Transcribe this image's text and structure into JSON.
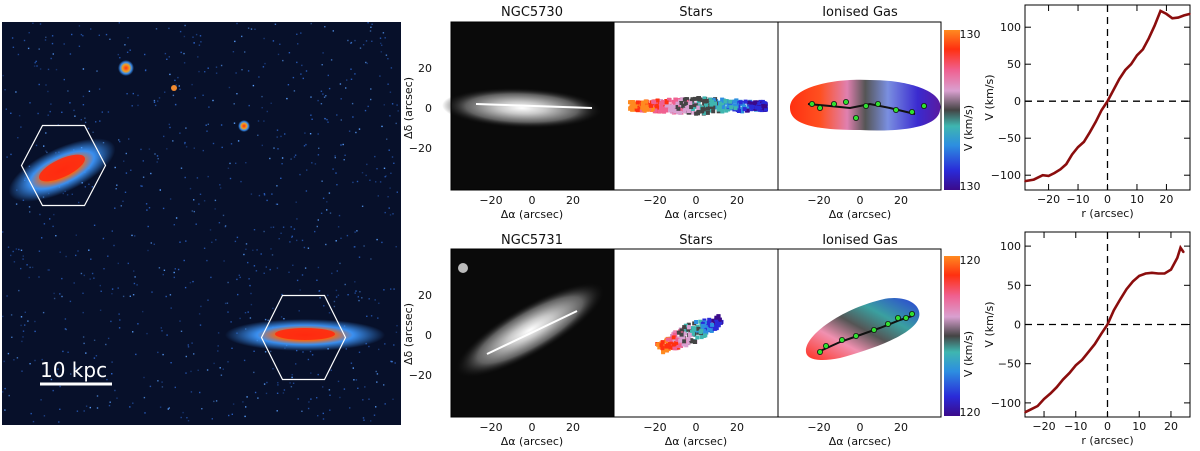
{
  "colors": {
    "image_background": "#07102a",
    "galaxy_core": "#ff2a10",
    "galaxy_mid": "#f06a1a",
    "galaxy_halo": "#3a8ff0",
    "rotation_curve": "#8b0d0d",
    "velocity_colorbar": [
      "#3b0a8a",
      "#2a2ad8",
      "#2d8fe0",
      "#3fb6b0",
      "#444444",
      "#d9a0d0",
      "#f06090",
      "#ff3010",
      "#ff8a20"
    ]
  },
  "overview_panel": {
    "scale_bar_label": "10 kpc"
  },
  "galaxies": [
    {
      "name": "NGC5730",
      "panel_titles": {
        "image": "NGC5730",
        "stars": "Stars",
        "gas": "Ionised Gas"
      },
      "xlabel": "Δα (arcsec)",
      "ylabel": "Δδ (arcsec)",
      "x_ticks": [
        "−20",
        "0",
        "20"
      ],
      "y_ticks": [
        "20",
        "0",
        "−20"
      ],
      "colorbar": {
        "label": "V (km/s)",
        "max": "130",
        "min": "130"
      }
    },
    {
      "name": "NGC5731",
      "panel_titles": {
        "image": "NGC5731",
        "stars": "Stars",
        "gas": "Ionised Gas"
      },
      "xlabel": "Δα (arcsec)",
      "ylabel": "Δδ (arcsec)",
      "x_ticks": [
        "−20",
        "0",
        "20"
      ],
      "y_ticks": [
        "20",
        "0",
        "−20"
      ],
      "colorbar": {
        "label": "V (km/s)",
        "max": "120",
        "min": "120"
      }
    }
  ],
  "chart_data": [
    {
      "type": "line",
      "title": "",
      "xlabel": "r (arcsec)",
      "ylabel": "V (km/s)",
      "xlim": [
        -28,
        28
      ],
      "ylim": [
        -120,
        130
      ],
      "x_ticks": [
        -20,
        -10,
        0,
        10,
        20
      ],
      "y_ticks": [
        -100,
        -50,
        0,
        50,
        100
      ],
      "reference_lines": {
        "x": 0,
        "y": 0,
        "style": "dashed"
      },
      "series": [
        {
          "x": [
            -28,
            -25,
            -22,
            -20,
            -18,
            -16,
            -14,
            -12,
            -10,
            -8,
            -6,
            -4,
            -2,
            0,
            2,
            4,
            6,
            8,
            10,
            12,
            14,
            16,
            18,
            20,
            22,
            24,
            26,
            28
          ],
          "y": [
            -108,
            -106,
            -100,
            -101,
            -97,
            -92,
            -85,
            -72,
            -62,
            -55,
            -42,
            -28,
            -12,
            0,
            15,
            30,
            42,
            50,
            62,
            70,
            85,
            102,
            122,
            118,
            112,
            113,
            116,
            118
          ]
        }
      ]
    },
    {
      "type": "line",
      "title": "",
      "xlabel": "r (arcsec)",
      "ylabel": "V (km/s)",
      "xlim": [
        -26,
        26
      ],
      "ylim": [
        -118,
        118
      ],
      "x_ticks": [
        -20,
        -10,
        0,
        10,
        20
      ],
      "y_ticks": [
        -100,
        -50,
        0,
        50,
        100
      ],
      "reference_lines": {
        "x": 0,
        "y": 0,
        "style": "dashed"
      },
      "series": [
        {
          "x": [
            -26,
            -24,
            -22,
            -20,
            -18,
            -16,
            -14,
            -12,
            -10,
            -8,
            -6,
            -4,
            -2,
            0,
            2,
            4,
            6,
            8,
            10,
            12,
            14,
            16,
            18,
            20,
            22,
            23,
            24
          ],
          "y": [
            -112,
            -108,
            -104,
            -95,
            -88,
            -80,
            -70,
            -62,
            -52,
            -45,
            -35,
            -25,
            -12,
            0,
            18,
            32,
            45,
            55,
            62,
            65,
            66,
            65,
            65,
            70,
            85,
            98,
            92
          ]
        }
      ]
    }
  ]
}
